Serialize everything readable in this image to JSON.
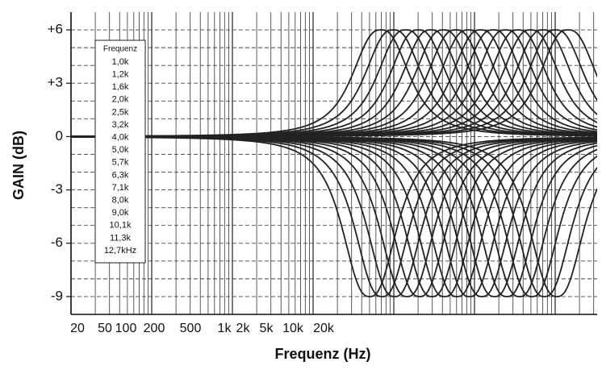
{
  "chart_data": {
    "type": "line",
    "x_label": "Frequenz (Hz)",
    "y_label": "GAIN (dB)",
    "x_labels": [
      "20",
      "50",
      "100",
      "200",
      "500",
      "1k",
      "2k",
      "5k",
      "10k",
      "20k"
    ],
    "ylim": [
      -10,
      7
    ],
    "yticks": [
      {
        "value": 6,
        "label": "+6"
      },
      {
        "value": 3,
        "label": "+3"
      },
      0,
      -3,
      -6,
      -9
    ],
    "ygrid": [
      -9,
      -8,
      -7,
      -6,
      -5,
      -4,
      -3,
      -2,
      -1,
      0,
      1,
      2,
      3,
      4,
      5,
      6
    ],
    "legend_title": "Frequenz",
    "color": "#222222",
    "series": [
      {
        "name": "1,0k",
        "values": [
          6,
          -9
        ]
      },
      {
        "name": "1,2k",
        "values": [
          6,
          -9
        ]
      },
      {
        "name": "1,6k",
        "values": [
          6,
          -9
        ]
      },
      {
        "name": "2,0k",
        "values": [
          6,
          -9
        ]
      },
      {
        "name": "2,5k",
        "values": [
          6,
          -9
        ]
      },
      {
        "name": "3,2k",
        "values": [
          6,
          -9
        ]
      },
      {
        "name": "4,0k",
        "values": [
          6,
          -9
        ]
      },
      {
        "name": "5,0k",
        "values": [
          6,
          -9
        ]
      },
      {
        "name": "5,7k",
        "values": [
          6,
          -9
        ]
      },
      {
        "name": "6,3k",
        "values": [
          6,
          -9
        ]
      },
      {
        "name": "7,1k",
        "values": [
          6,
          -9
        ]
      },
      {
        "name": "8,0k",
        "values": [
          6,
          -9
        ]
      },
      {
        "name": "9,0k",
        "values": [
          6,
          -9
        ]
      },
      {
        "name": "10,1k",
        "values": [
          6,
          -9
        ]
      },
      {
        "name": "11,3k",
        "values": [
          6,
          -9
        ]
      },
      {
        "name": "12,7kHz",
        "values": [
          6,
          -9
        ]
      }
    ]
  }
}
